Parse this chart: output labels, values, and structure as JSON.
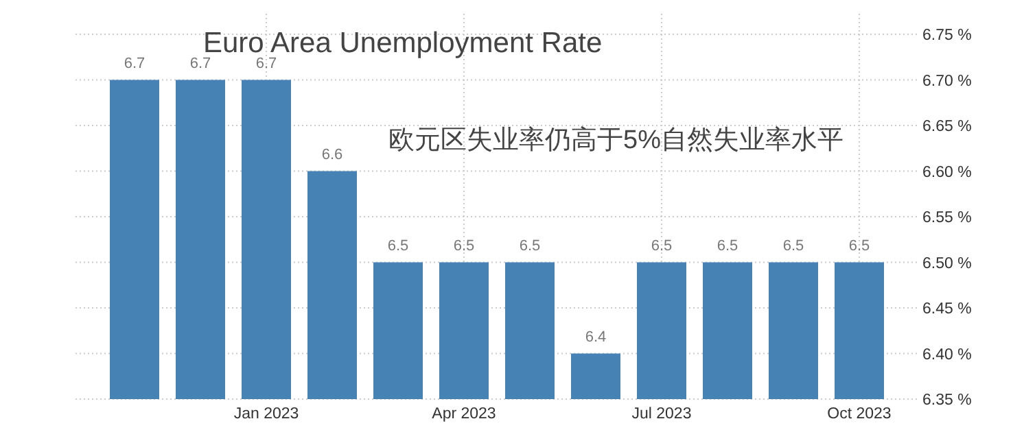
{
  "chart_data": {
    "type": "bar",
    "title": "Euro Area Unemployment Rate",
    "annotations": [
      "欧元区失业率仍高于5%自然失业率水平"
    ],
    "categories": [
      null,
      null,
      "Jan 2023",
      null,
      null,
      "Apr 2023",
      null,
      null,
      "Jul 2023",
      null,
      null,
      "Oct 2023"
    ],
    "values": [
      6.7,
      6.7,
      6.7,
      6.6,
      6.5,
      6.5,
      6.5,
      6.4,
      6.5,
      6.5,
      6.5,
      6.5
    ],
    "color": "#4682b4",
    "ylim": [
      6.35,
      6.75
    ],
    "yticks": [
      {
        "value": 6.35,
        "label": "6.35 %"
      },
      {
        "value": 6.4,
        "label": "6.40 %"
      },
      {
        "value": 6.45,
        "label": "6.45 %"
      },
      {
        "value": 6.5,
        "label": "6.50 %"
      },
      {
        "value": 6.55,
        "label": "6.55 %"
      },
      {
        "value": 6.6,
        "label": "6.60 %"
      },
      {
        "value": 6.65,
        "label": "6.65 %"
      },
      {
        "value": 6.7,
        "label": "6.70 %"
      },
      {
        "value": 6.75,
        "label": "6.75 %"
      }
    ],
    "grid": true,
    "data_labels": true
  }
}
